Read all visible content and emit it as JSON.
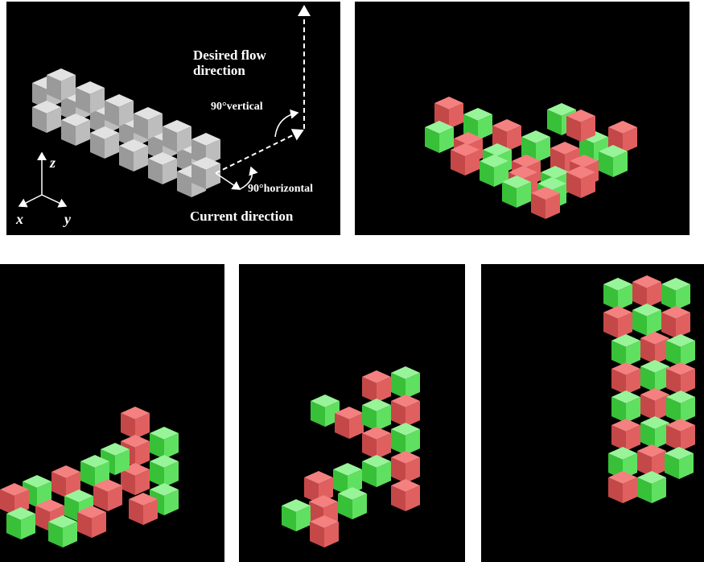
{
  "annotations": {
    "desired_flow": [
      "Desired flow",
      "direction"
    ],
    "vertical_turn": "90°vertical",
    "horizontal_turn": "90°horizontal",
    "current_direction": "Current direction"
  },
  "axes": {
    "z": "z",
    "x": "x",
    "y": "y"
  }
}
